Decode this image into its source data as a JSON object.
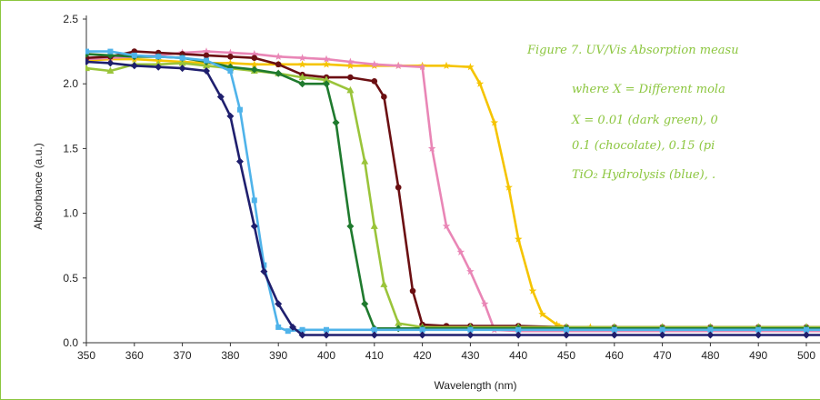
{
  "caption": {
    "color": "#8cc63f",
    "lines": [
      "Figure 7.  UV/Vis Absorption measu",
      "where X = Different mola",
      "X = 0.01 (dark green), 0",
      "0.1 (chocolate), 0.15 (pi",
      "TiO₂ Hydrolysis (blue), ."
    ]
  },
  "chart_data": {
    "type": "line",
    "xlabel": "Wavelength (nm)",
    "ylabel": "Absorbance (a.u.)",
    "xlim": [
      350,
      500
    ],
    "ylim": [
      0,
      2.5
    ],
    "x_ticks": [
      "350",
      "360",
      "370",
      "380",
      "390",
      "400",
      "410",
      "420",
      "430",
      "440",
      "450",
      "460",
      "470",
      "480",
      "490",
      "500"
    ],
    "y_ticks": [
      "0.0",
      "0.5",
      "1.0",
      "1.5",
      "2.0",
      "2.5"
    ],
    "grid": false,
    "legend": "none",
    "series": [
      {
        "color": "#1f1f6e",
        "marker": "diamond",
        "x": [
          350,
          355,
          360,
          365,
          370,
          375,
          378,
          380,
          382,
          385,
          387,
          390,
          393,
          395,
          400,
          410,
          420,
          430,
          440,
          450,
          460,
          470,
          480,
          490,
          500,
          505
        ],
        "y": [
          2.17,
          2.16,
          2.14,
          2.13,
          2.12,
          2.1,
          1.9,
          1.75,
          1.4,
          0.9,
          0.55,
          0.3,
          0.12,
          0.06,
          0.06,
          0.06,
          0.06,
          0.06,
          0.06,
          0.06,
          0.06,
          0.06,
          0.06,
          0.06,
          0.06,
          0.06
        ]
      },
      {
        "color": "#4fb3ea",
        "marker": "square",
        "x": [
          350,
          355,
          360,
          365,
          370,
          375,
          380,
          382,
          385,
          387,
          390,
          392,
          395,
          400,
          410,
          420,
          430,
          440,
          450,
          460,
          470,
          480,
          490,
          500,
          505
        ],
        "y": [
          2.25,
          2.25,
          2.22,
          2.21,
          2.2,
          2.18,
          2.1,
          1.8,
          1.1,
          0.6,
          0.12,
          0.09,
          0.1,
          0.1,
          0.1,
          0.1,
          0.1,
          0.1,
          0.1,
          0.1,
          0.1,
          0.1,
          0.1,
          0.1,
          0.1
        ]
      },
      {
        "color": "#1f7a2e",
        "marker": "diamond",
        "x": [
          350,
          355,
          360,
          365,
          370,
          375,
          380,
          385,
          390,
          395,
          400,
          402,
          405,
          408,
          410,
          415,
          420,
          430,
          440,
          450,
          460,
          470,
          480,
          490,
          500,
          505
        ],
        "y": [
          2.23,
          2.22,
          2.21,
          2.21,
          2.2,
          2.17,
          2.13,
          2.11,
          2.08,
          2.0,
          2.0,
          1.7,
          0.9,
          0.3,
          0.11,
          0.11,
          0.11,
          0.11,
          0.11,
          0.11,
          0.11,
          0.11,
          0.11,
          0.11,
          0.11,
          0.11
        ]
      },
      {
        "color": "#9ac43a",
        "marker": "triangle",
        "x": [
          350,
          355,
          360,
          365,
          370,
          375,
          380,
          385,
          390,
          395,
          400,
          405,
          408,
          410,
          412,
          415,
          420,
          430,
          440,
          450,
          460,
          470,
          480,
          490,
          500,
          505
        ],
        "y": [
          2.12,
          2.1,
          2.15,
          2.15,
          2.16,
          2.14,
          2.12,
          2.1,
          2.08,
          2.05,
          2.03,
          1.95,
          1.4,
          0.9,
          0.45,
          0.15,
          0.12,
          0.12,
          0.12,
          0.12,
          0.12,
          0.12,
          0.12,
          0.12,
          0.12,
          0.12
        ]
      },
      {
        "color": "#6b0f12",
        "marker": "circle",
        "x": [
          350,
          355,
          360,
          365,
          370,
          375,
          380,
          385,
          390,
          395,
          400,
          405,
          410,
          412,
          415,
          418,
          420,
          425,
          430,
          440,
          450,
          460,
          470,
          480,
          490,
          500,
          505
        ],
        "y": [
          2.2,
          2.21,
          2.25,
          2.24,
          2.23,
          2.22,
          2.21,
          2.2,
          2.15,
          2.07,
          2.05,
          2.05,
          2.02,
          1.9,
          1.2,
          0.4,
          0.14,
          0.13,
          0.13,
          0.13,
          0.12,
          0.12,
          0.12,
          0.12,
          0.12,
          0.12,
          0.12
        ]
      },
      {
        "color": "#e986b6",
        "marker": "star",
        "x": [
          350,
          355,
          360,
          365,
          370,
          375,
          380,
          385,
          390,
          395,
          400,
          405,
          410,
          415,
          420,
          422,
          425,
          428,
          430,
          433,
          435,
          440,
          450,
          460,
          470,
          480,
          490,
          500,
          505
        ],
        "y": [
          2.19,
          2.2,
          2.21,
          2.22,
          2.24,
          2.25,
          2.24,
          2.23,
          2.21,
          2.2,
          2.19,
          2.17,
          2.15,
          2.14,
          2.13,
          1.5,
          0.9,
          0.7,
          0.55,
          0.3,
          0.1,
          0.09,
          0.09,
          0.09,
          0.09,
          0.09,
          0.09,
          0.09,
          0.09
        ]
      },
      {
        "color": "#f5c400",
        "marker": "star",
        "x": [
          350,
          355,
          360,
          365,
          370,
          375,
          380,
          385,
          390,
          395,
          400,
          405,
          410,
          415,
          420,
          425,
          430,
          432,
          435,
          438,
          440,
          443,
          445,
          448,
          450,
          455,
          460,
          470,
          480,
          490,
          500,
          505
        ],
        "y": [
          2.18,
          2.19,
          2.19,
          2.18,
          2.17,
          2.16,
          2.16,
          2.15,
          2.15,
          2.15,
          2.15,
          2.14,
          2.14,
          2.14,
          2.14,
          2.14,
          2.13,
          2.0,
          1.7,
          1.2,
          0.8,
          0.4,
          0.22,
          0.14,
          0.12,
          0.12,
          0.12,
          0.12,
          0.12,
          0.12,
          0.12,
          0.12
        ]
      }
    ]
  }
}
